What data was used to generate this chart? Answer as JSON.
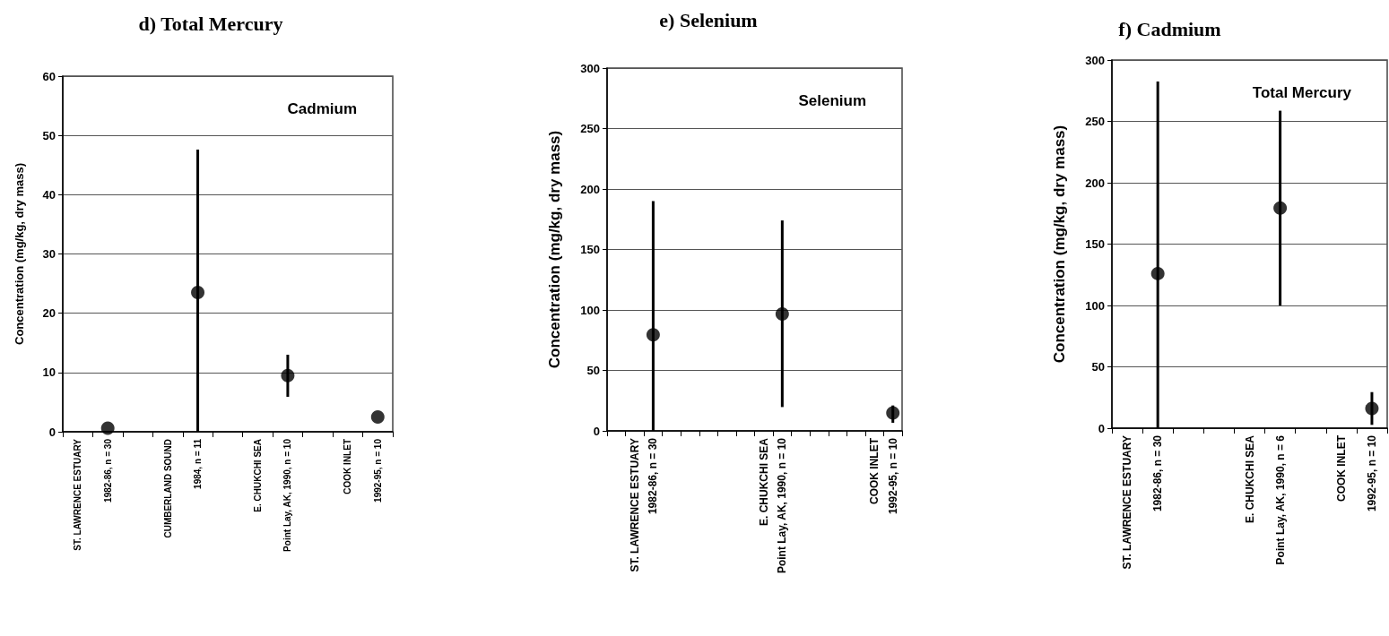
{
  "chart_data": [
    {
      "type": "scatter",
      "title": "d) Total Mercury",
      "ylabel": "Concentration (mg/kg, dry mass)",
      "annotations": [
        "Cadmium"
      ],
      "categories": [
        "ST. LAWRENCE ESTUARY",
        "1982-86, n = 30",
        null,
        "CUMBERLAND SOUND",
        "1984, n = 11",
        null,
        "E. CHUKCHI SEA",
        "Point Lay, AK, 1990, n = 10",
        null,
        "COOK INLET",
        "1992-95, n = 10"
      ],
      "series": [
        {
          "color": "#000000",
          "values": [
            null,
            0.6,
            null,
            null,
            23.5,
            null,
            null,
            9.5,
            null,
            null,
            2.5
          ],
          "errors": [
            null,
            null,
            null,
            null,
            [
              0,
              47.6
            ],
            null,
            null,
            [
              5.9,
              13
            ],
            null,
            null,
            null
          ]
        }
      ],
      "ylim": [
        0,
        60
      ],
      "yticks": [
        0,
        10,
        20,
        30,
        40,
        50,
        60
      ],
      "grid": "y",
      "marker": "circle"
    },
    {
      "type": "scatter",
      "title": "e) Selenium",
      "ylabel": "Concentration (mg/kg, dry mass)",
      "annotations": [
        "Selenium"
      ],
      "categories": [
        null,
        "ST. LAWRENCE ESTUARY",
        "1982-86, n = 30",
        null,
        null,
        null,
        null,
        null,
        "E. CHUKCHI SEA",
        "Point Lay, AK, 1990, n = 10",
        null,
        null,
        null,
        null,
        "COOK INLET",
        "1992-95, n = 10"
      ],
      "series": [
        {
          "color": "#000000",
          "values": [
            null,
            null,
            79.4,
            null,
            null,
            null,
            null,
            null,
            null,
            96.7,
            null,
            null,
            null,
            null,
            null,
            14.8
          ],
          "errors": [
            null,
            null,
            [
              0,
              190
            ],
            null,
            null,
            null,
            null,
            null,
            null,
            [
              19.7,
              174
            ],
            null,
            null,
            null,
            null,
            null,
            [
              6.7,
              21
            ]
          ]
        }
      ],
      "ylim": [
        0,
        300
      ],
      "yticks": [
        0,
        50,
        100,
        150,
        200,
        250,
        300
      ],
      "grid": "y",
      "marker": "circle"
    },
    {
      "type": "scatter",
      "title": "f) Cadmium",
      "ylabel": "Concentration (mg/kg, dry mass)",
      "annotations": [
        "Total Mercury"
      ],
      "categories": [
        "ST. LAWRENCE ESTUARY",
        "1982-86, n = 30",
        null,
        null,
        "E. CHUKCHI SEA",
        "Point Lay, AK, 1990, n = 6",
        null,
        "COOK INLET",
        "1992-95, n = 10"
      ],
      "series": [
        {
          "color": "#000000",
          "values": [
            null,
            126,
            null,
            null,
            null,
            179.4,
            null,
            null,
            16
          ],
          "errors": [
            null,
            [
              0,
              282.5
            ],
            null,
            null,
            null,
            [
              100,
              258.7
            ],
            null,
            null,
            [
              2.7,
              29.4
            ]
          ]
        }
      ],
      "ylim": [
        0,
        300
      ],
      "yticks": [
        0,
        50,
        100,
        150,
        200,
        250,
        300
      ],
      "grid": "y",
      "marker": "circle"
    }
  ]
}
